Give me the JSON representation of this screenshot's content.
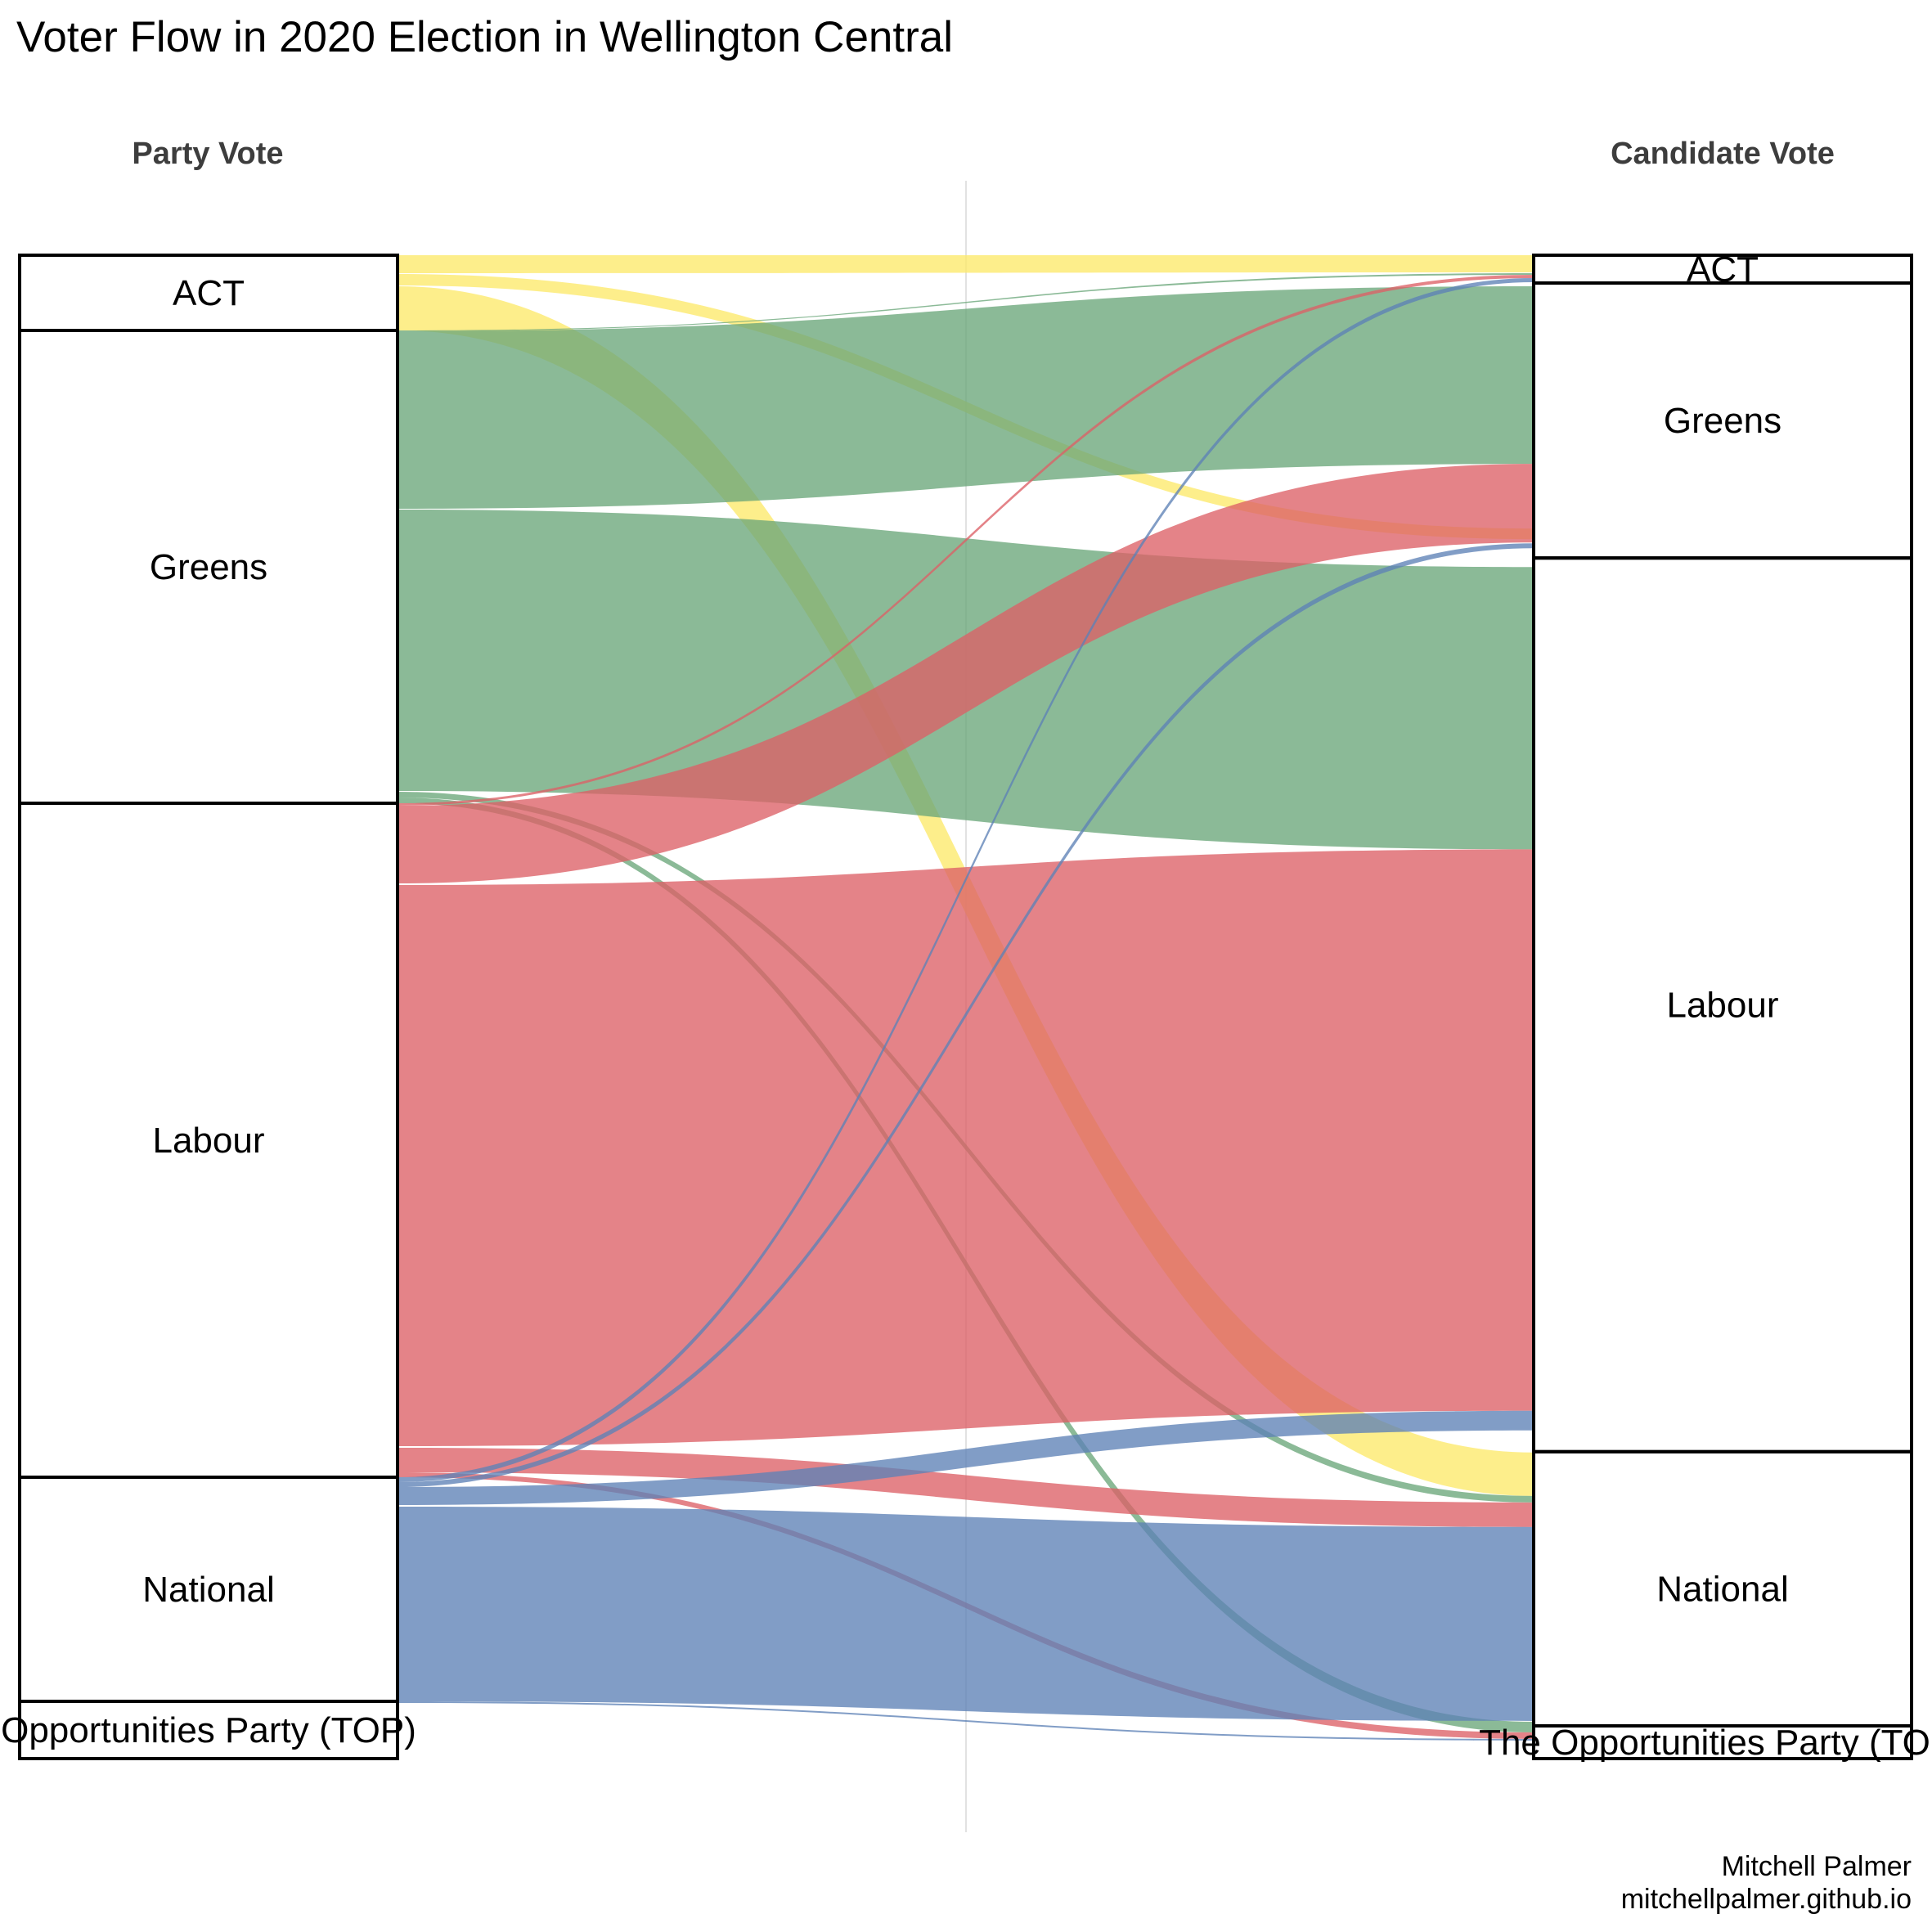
{
  "chart_data": {
    "type": "alluvial",
    "title": "Voter Flow in 2020 Election in Wellington Central",
    "axes": [
      {
        "name": "Party Vote",
        "categories": [
          "ACT",
          "Greens",
          "Labour",
          "National",
          "Opportunities Party (TOP)"
        ]
      },
      {
        "name": "Candidate Vote",
        "categories": [
          "ACT",
          "Greens",
          "Labour",
          "National",
          "The Opportunities Party (TOP)"
        ]
      }
    ],
    "node_totals_left": [
      93,
      578,
      824,
      274,
      70
    ],
    "node_totals_right": [
      34,
      336,
      1092,
      335,
      40
    ],
    "colors": {
      "ACT": "#fde96a",
      "Greens": "#6aa67a",
      "Labour": "#dd6066",
      "National": "#5d82b6",
      "TOP": "#5d82b6"
    },
    "flows": [
      {
        "from": "ACT",
        "to": "ACT",
        "value": 22,
        "left": [
          0,
          22
        ],
        "right": [
          0,
          21
        ]
      },
      {
        "from": "ACT",
        "to": "Labour",
        "value": 14,
        "left": [
          23,
          37
        ],
        "right": [
          334,
          347
        ]
      },
      {
        "from": "ACT",
        "to": "National",
        "value": 54,
        "left": [
          38,
          92
        ],
        "right": [
          1463,
          1516
        ]
      },
      {
        "from": "Greens",
        "to": "ACT",
        "value": 1,
        "left": [
          92,
          93
        ],
        "right": [
          22,
          24
        ]
      },
      {
        "from": "Greens",
        "to": "Greens",
        "value": 217,
        "left": [
          93,
          310
        ],
        "right": [
          38,
          255
        ]
      },
      {
        "from": "Greens",
        "to": "Labour",
        "value": 343,
        "left": [
          311,
          655
        ],
        "right": [
          381,
          726
        ]
      },
      {
        "from": "Greens",
        "to": "National",
        "value": 8,
        "left": [
          656,
          663
        ],
        "right": [
          1516,
          1524
        ]
      },
      {
        "from": "Greens",
        "to": "TOP",
        "value": 7,
        "left": [
          663,
          670
        ],
        "right": [
          1792,
          1805
        ]
      },
      {
        "from": "Labour",
        "to": "ACT",
        "value": 3,
        "left": [
          670,
          673
        ],
        "right": [
          24,
          28
        ]
      },
      {
        "from": "Labour",
        "to": "Greens",
        "value": 95,
        "left": [
          673,
          768
        ],
        "right": [
          255,
          351
        ]
      },
      {
        "from": "Labour",
        "to": "Labour",
        "value": 686,
        "left": [
          770,
          1456
        ],
        "right": [
          726,
          1412
        ]
      },
      {
        "from": "Labour",
        "to": "National",
        "value": 30,
        "left": [
          1458,
          1488
        ],
        "right": [
          1524,
          1554
        ]
      },
      {
        "from": "Labour",
        "to": "TOP",
        "value": 6,
        "left": [
          1488,
          1494
        ],
        "right": [
          1805,
          1813
        ]
      },
      {
        "from": "National",
        "to": "ACT",
        "value": 5,
        "left": [
          1494,
          1500
        ],
        "right": [
          28,
          33
        ]
      },
      {
        "from": "National",
        "to": "Greens",
        "value": 6,
        "left": [
          1500,
          1506
        ],
        "right": [
          352,
          358
        ]
      },
      {
        "from": "National",
        "to": "Labour",
        "value": 24,
        "left": [
          1506,
          1528
        ],
        "right": [
          1412,
          1436
        ]
      },
      {
        "from": "National",
        "to": "National",
        "value": 238,
        "left": [
          1530,
          1768
        ],
        "right": [
          1554,
          1791
        ]
      },
      {
        "from": "National",
        "to": "TOP",
        "value": 2,
        "left": [
          1768,
          1770
        ],
        "right": [
          1813,
          1815
        ]
      }
    ],
    "axis_offsets_left": [
      0,
      92,
      670,
      1494,
      1768,
      1838
    ],
    "axis_offsets_right": [
      0,
      34,
      370,
      1462,
      1797,
      1837
    ],
    "xlabel": "",
    "ylabel": "",
    "grid": false
  },
  "header": {
    "title": "Voter Flow in 2020 Election in Wellington Central",
    "left_axis": "Party Vote",
    "right_axis": "Candidate Vote"
  },
  "nodes_left": [
    "ACT",
    "Greens",
    "Labour",
    "National",
    "Opportunities Party (TOP)"
  ],
  "nodes_right": [
    "ACT",
    "Greens",
    "Labour",
    "National",
    "The Opportunities Party (TOP)"
  ],
  "caption": {
    "author": "Mitchell Palmer",
    "site": "mitchellpalmer.github.io"
  }
}
